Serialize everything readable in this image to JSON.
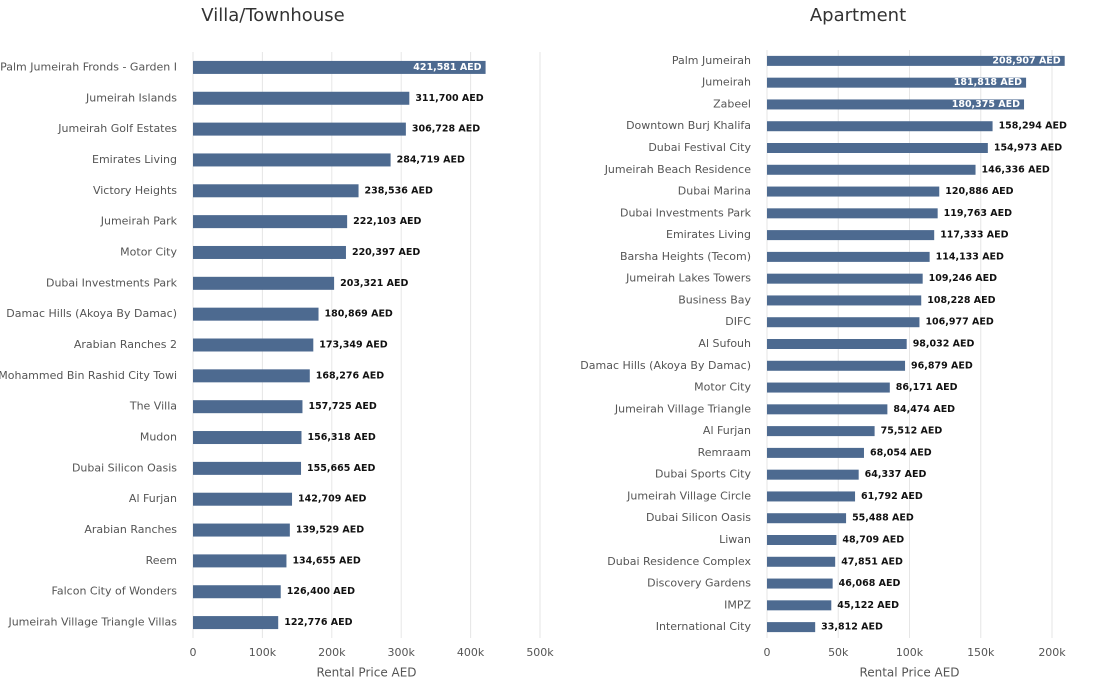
{
  "chart_data": [
    {
      "type": "hbar",
      "title": "Villa/Townhouse",
      "x_label": "Rental Price AED",
      "color": "#4d6a90",
      "grid": true,
      "categories": [
        "Palm Jumeirah Fronds - Garden I",
        "Jumeirah Islands",
        "Jumeirah Golf Estates",
        "Emirates Living",
        "Victory Heights",
        "Jumeirah Park",
        "Motor City",
        "Dubai Investments Park",
        "Damac Hills (Akoya By Damac)",
        "Arabian Ranches 2",
        "Mohammed Bin Rashid City Towi",
        "The Villa",
        "Mudon",
        "Dubai Silicon Oasis",
        "Al Furjan",
        "Arabian Ranches",
        "Reem",
        "Falcon City of Wonders",
        "Jumeirah Village Triangle Villas"
      ],
      "values": [
        421581,
        311700,
        306728,
        284719,
        238536,
        222103,
        220397,
        203321,
        180869,
        173349,
        168276,
        157725,
        156318,
        155665,
        142709,
        139529,
        134655,
        126400,
        122776
      ],
      "value_labels": [
        "421,581 AED",
        "311,700 AED",
        "306,728 AED",
        "284,719 AED",
        "238,536 AED",
        "222,103 AED",
        "220,397 AED",
        "203,321 AED",
        "180,869 AED",
        "173,349 AED",
        "168,276 AED",
        "157,725 AED",
        "156,318 AED",
        "155,665 AED",
        "142,709 AED",
        "139,529 AED",
        "134,655 AED",
        "126,400 AED",
        "122,776 AED"
      ],
      "xlim": [
        0,
        500000
      ],
      "xticks": [
        0,
        {
          "value": 100000,
          "label": "100k"
        },
        {
          "value": 200000,
          "label": "200k"
        },
        {
          "value": 300000,
          "label": "300k"
        },
        {
          "value": 400000,
          "label": "400k"
        },
        {
          "value": 500000,
          "label": "500k"
        }
      ]
    },
    {
      "type": "hbar",
      "title": "Apartment",
      "x_label": "Rental Price AED",
      "color": "#4d6a90",
      "grid": true,
      "categories": [
        "Palm Jumeirah",
        "Jumeirah",
        "Zabeel",
        "Downtown Burj Khalifa",
        "Dubai Festival City",
        "Jumeirah Beach Residence",
        "Dubai Marina",
        "Dubai Investments Park",
        "Emirates Living",
        "Barsha Heights (Tecom)",
        "Jumeirah Lakes Towers",
        "Business Bay",
        "DIFC",
        "Al Sufouh",
        "Damac Hills (Akoya By Damac)",
        "Motor City",
        "Jumeirah Village Triangle",
        "Al Furjan",
        "Remraam",
        "Dubai Sports City",
        "Jumeirah Village Circle",
        "Dubai Silicon Oasis",
        "Liwan",
        "Dubai Residence Complex",
        "Discovery Gardens",
        "IMPZ",
        "International City"
      ],
      "values": [
        208907,
        181818,
        180375,
        158294,
        154973,
        146336,
        120886,
        119763,
        117333,
        114133,
        109246,
        108228,
        106977,
        98032,
        96879,
        86171,
        84474,
        75512,
        68054,
        64337,
        61792,
        55488,
        48709,
        47851,
        46068,
        45122,
        33812
      ],
      "value_labels": [
        "208,907 AED",
        "181,818 AED",
        "180,375 AED",
        "158,294 AED",
        "154,973 AED",
        "146,336 AED",
        "120,886 AED",
        "119,763 AED",
        "117,333 AED",
        "114,133 AED",
        "109,246 AED",
        "108,228 AED",
        "106,977 AED",
        "98,032 AED",
        "96,879 AED",
        "86,171 AED",
        "84,474 AED",
        "75,512 AED",
        "68,054 AED",
        "64,337 AED",
        "61,792 AED",
        "55,488 AED",
        "48,709 AED",
        "47,851 AED",
        "46,068 AED",
        "45,122 AED",
        "33,812 AED"
      ],
      "xlim": [
        0,
        200000
      ],
      "xticks": [
        0,
        {
          "value": 50000,
          "label": "50k"
        },
        {
          "value": 100000,
          "label": "100k"
        },
        {
          "value": 150000,
          "label": "150k"
        },
        {
          "value": 200000,
          "label": "200k"
        }
      ]
    }
  ]
}
